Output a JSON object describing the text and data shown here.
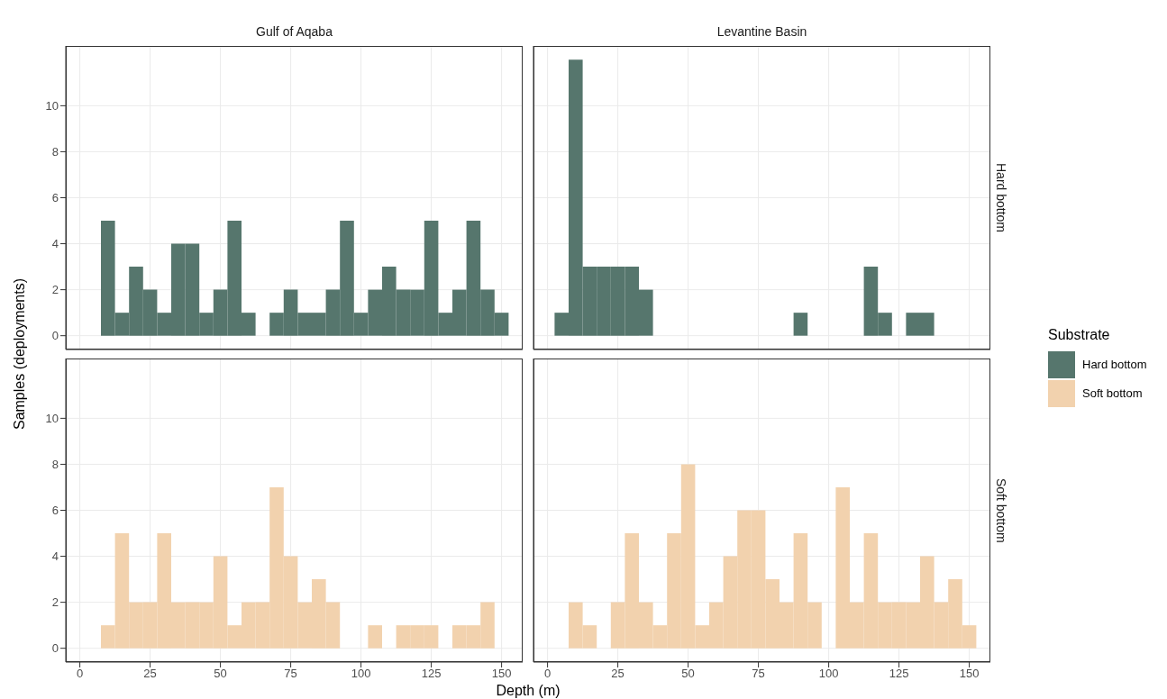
{
  "chart_data": [
    {
      "type": "histogram",
      "title": "Gulf of Aqaba",
      "ylabel": "Samples (deployments)",
      "legend_title": "Substrate",
      "bins": [
        7.5,
        12.5,
        17.5,
        22.5,
        27.5,
        32.5,
        37.5,
        42.5,
        47.5,
        52.5,
        57.5,
        62.5,
        67.5,
        72.5,
        77.5,
        82.5,
        87.5,
        92.5,
        97.5,
        102.5,
        107.5,
        112.5,
        117.5,
        122.5,
        127.5,
        132.5,
        137.5,
        142.5,
        147.5,
        152.5
      ],
      "series": [
        {
          "color": "#56766d",
          "values": [
            5,
            1,
            3,
            2,
            1,
            4,
            4,
            1,
            2,
            5,
            1,
            0,
            1,
            2,
            1,
            1,
            2,
            5,
            1,
            2,
            3,
            2,
            2,
            5,
            1,
            2,
            5,
            2,
            1
          ]
        }
      ],
      "xlim": [
        -5,
        157.5
      ],
      "xticks": [
        0,
        25,
        50,
        75,
        100,
        125,
        150
      ],
      "ylim": [
        -0.6,
        12.6
      ],
      "yticks": [
        0,
        2,
        4,
        6,
        8,
        10
      ],
      "grid": true,
      "tick_labels": "y"
    },
    {
      "type": "histogram",
      "title": "Levantine Basin",
      "y2label": "Hard bottom",
      "legend": "right",
      "bins": [
        2.5,
        7.5,
        12.5,
        17.5,
        22.5,
        27.5,
        32.5,
        37.5,
        42.5,
        47.5,
        52.5,
        57.5,
        62.5,
        67.5,
        72.5,
        77.5,
        82.5,
        87.5,
        92.5,
        97.5,
        102.5,
        107.5,
        112.5,
        117.5,
        122.5,
        127.5,
        132.5,
        137.5,
        142.5,
        147.5,
        152.5
      ],
      "series": [
        {
          "name": "Hard bottom",
          "color": "#56766d",
          "values": [
            1,
            12,
            3,
            3,
            3,
            3,
            2,
            0,
            0,
            0,
            0,
            0,
            0,
            0,
            0,
            0,
            0,
            1,
            0,
            0,
            0,
            0,
            3,
            1,
            0,
            1,
            1,
            0,
            0,
            0
          ]
        }
      ],
      "xlim": [
        -5,
        157.5
      ],
      "xticks": [
        0,
        25,
        50,
        75,
        100,
        125,
        150
      ],
      "ylim": [
        -0.6,
        12.6
      ],
      "yticks": [
        0,
        2,
        4,
        6,
        8,
        10
      ],
      "grid": true,
      "tick_labels": false
    },
    {
      "type": "histogram",
      "xlabel": "Depth (m)",
      "bins": [
        7.5,
        12.5,
        17.5,
        22.5,
        27.5,
        32.5,
        37.5,
        42.5,
        47.5,
        52.5,
        57.5,
        62.5,
        67.5,
        72.5,
        77.5,
        82.5,
        87.5,
        92.5,
        97.5,
        102.5,
        107.5,
        112.5,
        117.5,
        122.5,
        127.5,
        132.5,
        137.5,
        142.5,
        147.5,
        152.5
      ],
      "series": [
        {
          "color": "#f2d2ae",
          "values": [
            1,
            5,
            2,
            2,
            5,
            2,
            2,
            2,
            4,
            1,
            2,
            2,
            7,
            4,
            2,
            3,
            2,
            0,
            0,
            1,
            0,
            1,
            1,
            1,
            0,
            1,
            1,
            2,
            0
          ]
        }
      ],
      "xlim": [
        -5,
        157.5
      ],
      "xticks": [
        0,
        25,
        50,
        75,
        100,
        125,
        150
      ],
      "ylim": [
        -0.6,
        12.6
      ],
      "yticks": [
        0,
        2,
        4,
        6,
        8,
        10
      ],
      "grid": true
    },
    {
      "type": "histogram",
      "y2label": "Soft bottom",
      "legend": "right",
      "bins": [
        2.5,
        7.5,
        12.5,
        17.5,
        22.5,
        27.5,
        32.5,
        37.5,
        42.5,
        47.5,
        52.5,
        57.5,
        62.5,
        67.5,
        72.5,
        77.5,
        82.5,
        87.5,
        92.5,
        97.5,
        102.5,
        107.5,
        112.5,
        117.5,
        122.5,
        127.5,
        132.5,
        137.5,
        142.5,
        147.5,
        152.5
      ],
      "series": [
        {
          "name": "Soft bottom",
          "color": "#f2d2ae",
          "values": [
            0,
            2,
            1,
            0,
            2,
            5,
            2,
            1,
            5,
            8,
            1,
            2,
            4,
            6,
            6,
            3,
            2,
            5,
            2,
            0,
            7,
            2,
            5,
            2,
            2,
            2,
            4,
            2,
            3,
            1
          ]
        }
      ],
      "xlim": [
        -5,
        157.5
      ],
      "xticks": [
        0,
        25,
        50,
        75,
        100,
        125,
        150
      ],
      "ylim": [
        -0.6,
        12.6
      ],
      "yticks": [
        0,
        2,
        4,
        6,
        8,
        10
      ],
      "grid": true,
      "tick_labels": "x"
    }
  ]
}
